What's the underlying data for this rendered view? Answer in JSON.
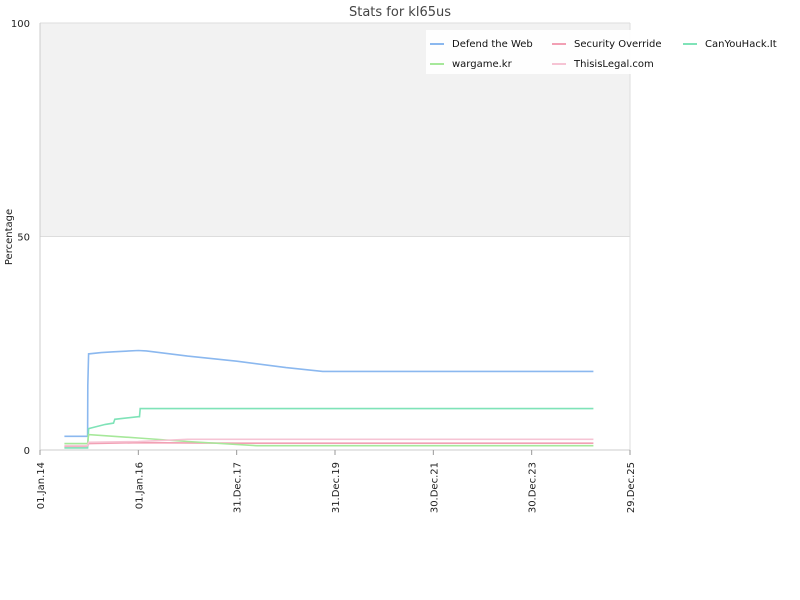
{
  "chart_data": {
    "type": "line",
    "title": "Stats for kl65us",
    "xlabel": "",
    "ylabel": "Percentage",
    "ylim": [
      0,
      100
    ],
    "xlim": [
      "2014-01-01",
      "2025-12-29"
    ],
    "y_ticks": [
      0,
      50,
      100
    ],
    "x_ticks": [
      {
        "date": "2014-01-01",
        "label": "01.Jan.14"
      },
      {
        "date": "2016-01-01",
        "label": "01.Jan.16"
      },
      {
        "date": "2017-12-31",
        "label": "31.Dec.17"
      },
      {
        "date": "2019-12-31",
        "label": "31.Dec.19"
      },
      {
        "date": "2021-12-30",
        "label": "30.Dec.21"
      },
      {
        "date": "2023-12-30",
        "label": "30.Dec.23"
      },
      {
        "date": "2025-12-29",
        "label": "29.Dec.25"
      }
    ],
    "shaded_band": {
      "from": 50,
      "to": 100,
      "color": "#f2f2f2"
    },
    "grid": true,
    "legend_position": "top-right",
    "series": [
      {
        "name": "Defend the Web",
        "color": "#8bb8ef",
        "points": [
          [
            "2014-07-01",
            3.2
          ],
          [
            "2014-12-20",
            3.2
          ],
          [
            "2014-12-22",
            15.0
          ],
          [
            "2014-12-28",
            22.5
          ],
          [
            "2015-04-01",
            22.8
          ],
          [
            "2015-07-01",
            23.0
          ],
          [
            "2016-01-01",
            23.3
          ],
          [
            "2016-03-01",
            23.2
          ],
          [
            "2017-01-01",
            22.0
          ],
          [
            "2018-01-01",
            20.8
          ],
          [
            "2019-01-01",
            19.3
          ],
          [
            "2019-10-01",
            18.4
          ],
          [
            "2025-04-01",
            18.4
          ]
        ]
      },
      {
        "name": "Security Override",
        "color": "#f2a0b4",
        "points": [
          [
            "2014-07-01",
            0.8
          ],
          [
            "2014-12-20",
            0.8
          ],
          [
            "2014-12-28",
            1.5
          ],
          [
            "2016-01-01",
            1.7
          ],
          [
            "2018-01-01",
            1.6
          ],
          [
            "2025-04-01",
            1.6
          ]
        ]
      },
      {
        "name": "CanYouHack.It",
        "color": "#7fe3b8",
        "points": [
          [
            "2014-07-01",
            0.5
          ],
          [
            "2014-12-20",
            0.5
          ],
          [
            "2014-12-28",
            5.0
          ],
          [
            "2015-05-01",
            6.0
          ],
          [
            "2015-07-01",
            6.3
          ],
          [
            "2015-07-10",
            7.2
          ],
          [
            "2016-01-01",
            7.8
          ],
          [
            "2016-01-10",
            7.8
          ],
          [
            "2016-01-15",
            9.7
          ],
          [
            "2025-04-01",
            9.7
          ]
        ]
      },
      {
        "name": "wargame.kr",
        "color": "#a6e89a",
        "points": [
          [
            "2014-07-01",
            1.5
          ],
          [
            "2014-12-20",
            1.5
          ],
          [
            "2014-12-28",
            3.6
          ],
          [
            "2015-07-01",
            3.2
          ],
          [
            "2016-01-01",
            2.8
          ],
          [
            "2017-01-01",
            2.0
          ],
          [
            "2018-06-01",
            1.0
          ],
          [
            "2025-04-01",
            1.0
          ]
        ]
      },
      {
        "name": "ThisisLegal.com",
        "color": "#f6c4d4",
        "points": [
          [
            "2014-07-01",
            1.0
          ],
          [
            "2014-12-20",
            1.0
          ],
          [
            "2014-12-28",
            1.8
          ],
          [
            "2016-01-01",
            2.0
          ],
          [
            "2017-01-01",
            2.5
          ],
          [
            "2025-04-01",
            2.5
          ]
        ]
      }
    ]
  }
}
